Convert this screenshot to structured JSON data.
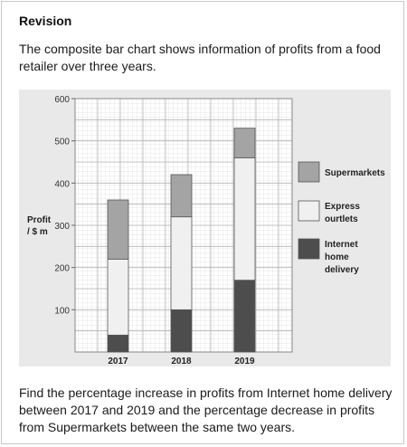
{
  "heading": "Revision",
  "intro": "The composite bar chart shows information of profits from a food retailer over three years.",
  "question": "Find the percentage increase in profits from Internet home delivery between 2017 and 2019 and the percentage decrease in profits from Supermarkets between the same two years.",
  "colors": {
    "Supermarkets": "#a4a4a4",
    "Express ourtlets": "#f0f0f0",
    "Internet home delivery": "#4d4d4d",
    "panel": "#e9e9e9",
    "grid": "#b4b4b4"
  },
  "chart_data": {
    "type": "bar",
    "stacked": true,
    "categories": [
      "2017",
      "2018",
      "2019"
    ],
    "series": [
      {
        "name": "Internet home delivery",
        "values": [
          40,
          100,
          170
        ]
      },
      {
        "name": "Express ourtlets",
        "values": [
          180,
          220,
          290
        ]
      },
      {
        "name": "Supermarkets",
        "values": [
          140,
          100,
          70
        ]
      }
    ],
    "ylabel": "Profit / $ m",
    "ylabel_lines": [
      "Profit",
      "/ $ m"
    ],
    "ylim": [
      0,
      600
    ],
    "yticks": [
      100,
      200,
      300,
      400,
      500,
      600
    ],
    "grid": true,
    "legend": {
      "position": "right",
      "entries": [
        {
          "series": "Supermarkets",
          "lines": [
            "Supermarkets"
          ]
        },
        {
          "series": "Express ourtlets",
          "lines": [
            "Express",
            "ourtlets"
          ]
        },
        {
          "series": "Internet home delivery",
          "lines": [
            "Internet",
            "home",
            "delivery"
          ]
        }
      ]
    }
  }
}
